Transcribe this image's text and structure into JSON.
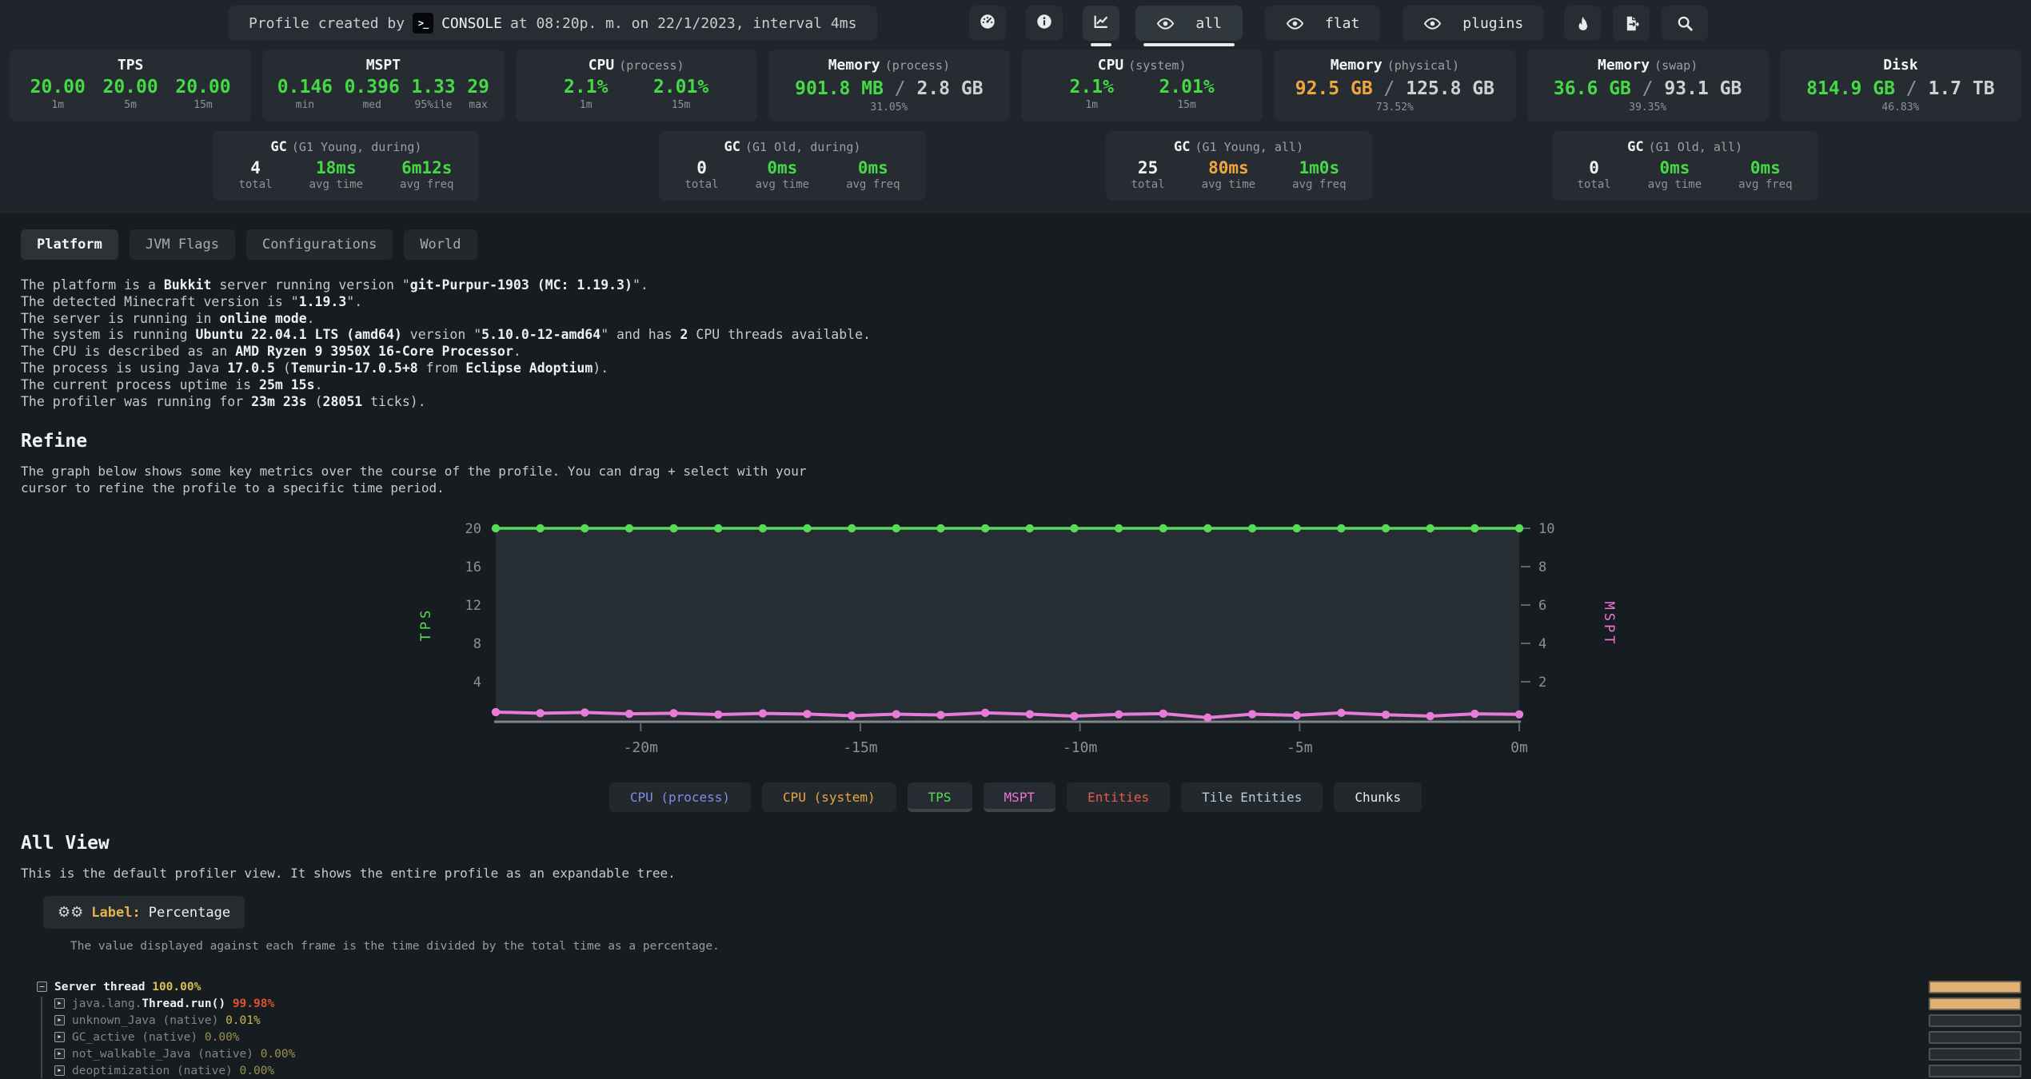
{
  "colors": {
    "green": "#45d945",
    "orange": "#efa73d",
    "white": "#f2f4f6"
  },
  "header": {
    "title_prefix": "Profile created by",
    "console_icon": ">_",
    "user": "CONSOLE",
    "title_suffix": "at 08:20p. m. on 22/1/2023, interval 4ms",
    "icon_buttons": [
      {
        "icon": "gauge-icon",
        "active": false
      },
      {
        "icon": "info-icon",
        "active": false
      },
      {
        "icon": "chart-icon",
        "active": true
      }
    ],
    "view_buttons": [
      {
        "label": "all",
        "active": true
      },
      {
        "label": "flat",
        "active": false
      },
      {
        "label": "plugins",
        "active": false
      }
    ],
    "tool_buttons": [
      {
        "icon": "flame-icon"
      },
      {
        "icon": "export-icon"
      },
      {
        "icon": "search-icon"
      }
    ]
  },
  "stats": [
    {
      "type": "cols",
      "title": "TPS",
      "subtitle": "",
      "cols": [
        {
          "v": "20.00",
          "label": "1m",
          "color": "green"
        },
        {
          "v": "20.00",
          "label": "5m",
          "color": "green"
        },
        {
          "v": "20.00",
          "label": "15m",
          "color": "green"
        }
      ]
    },
    {
      "type": "cols",
      "title": "MSPT",
      "subtitle": "",
      "cols": [
        {
          "v": "0.146",
          "label": "min",
          "color": "green"
        },
        {
          "v": "0.396",
          "label": "med",
          "color": "green"
        },
        {
          "v": "1.33",
          "label": "95%ile",
          "color": "green"
        },
        {
          "v": "29",
          "label": "max",
          "color": "green"
        }
      ]
    },
    {
      "type": "cols",
      "title": "CPU",
      "subtitle": "(process)",
      "cols": [
        {
          "v": "2.1%",
          "label": "1m",
          "color": "green"
        },
        {
          "v": "2.01%",
          "label": "15m",
          "color": "green"
        }
      ]
    },
    {
      "type": "usage",
      "title": "Memory",
      "subtitle": "(process)",
      "used": "901.8 MB",
      "total": "2.8 GB",
      "pct": "31.05%",
      "used_color": "green"
    },
    {
      "type": "cols",
      "title": "CPU",
      "subtitle": "(system)",
      "cols": [
        {
          "v": "2.1%",
          "label": "1m",
          "color": "green"
        },
        {
          "v": "2.01%",
          "label": "15m",
          "color": "green"
        }
      ]
    },
    {
      "type": "usage",
      "title": "Memory",
      "subtitle": "(physical)",
      "used": "92.5 GB",
      "total": "125.8 GB",
      "pct": "73.52%",
      "used_color": "orange"
    },
    {
      "type": "usage",
      "title": "Memory",
      "subtitle": "(swap)",
      "used": "36.6 GB",
      "total": "93.1 GB",
      "pct": "39.35%",
      "used_color": "green"
    },
    {
      "type": "usage",
      "title": "Disk",
      "subtitle": "",
      "used": "814.9 GB",
      "total": "1.7 TB",
      "pct": "46.83%",
      "used_color": "green"
    }
  ],
  "gc": [
    {
      "title": "GC",
      "subtitle": "(G1 Young, during)",
      "cols": [
        {
          "v": "4",
          "label": "total",
          "color": "white"
        },
        {
          "v": "18ms",
          "label": "avg time",
          "color": "green"
        },
        {
          "v": "6m12s",
          "label": "avg freq",
          "color": "green"
        }
      ]
    },
    {
      "title": "GC",
      "subtitle": "(G1 Old, during)",
      "cols": [
        {
          "v": "0",
          "label": "total",
          "color": "white"
        },
        {
          "v": "0ms",
          "label": "avg time",
          "color": "green"
        },
        {
          "v": "0ms",
          "label": "avg freq",
          "color": "green"
        }
      ]
    },
    {
      "title": "GC",
      "subtitle": "(G1 Young, all)",
      "cols": [
        {
          "v": "25",
          "label": "total",
          "color": "white"
        },
        {
          "v": "80ms",
          "label": "avg time",
          "color": "orange"
        },
        {
          "v": "1m0s",
          "label": "avg freq",
          "color": "green"
        }
      ]
    },
    {
      "title": "GC",
      "subtitle": "(G1 Old, all)",
      "cols": [
        {
          "v": "0",
          "label": "total",
          "color": "white"
        },
        {
          "v": "0ms",
          "label": "avg time",
          "color": "green"
        },
        {
          "v": "0ms",
          "label": "avg freq",
          "color": "green"
        }
      ]
    }
  ],
  "tabs": [
    {
      "label": "Platform",
      "active": true
    },
    {
      "label": "JVM Flags",
      "active": false
    },
    {
      "label": "Configurations",
      "active": false
    },
    {
      "label": "World",
      "active": false
    }
  ],
  "platform_lines": [
    [
      {
        "t": "The platform is a "
      },
      {
        "t": "Bukkit",
        "b": 1
      },
      {
        "t": " server running version \""
      },
      {
        "t": "git-Purpur-1903 (MC: 1.19.3)",
        "b": 1
      },
      {
        "t": "\"."
      }
    ],
    [
      {
        "t": "The detected Minecraft version is \""
      },
      {
        "t": "1.19.3",
        "b": 1
      },
      {
        "t": "\"."
      }
    ],
    [
      {
        "t": "The server is running in "
      },
      {
        "t": "online mode",
        "b": 1
      },
      {
        "t": "."
      }
    ],
    [
      {
        "t": "The system is running "
      },
      {
        "t": "Ubuntu 22.04.1 LTS (amd64)",
        "b": 1
      },
      {
        "t": " version \""
      },
      {
        "t": "5.10.0-12-amd64",
        "b": 1
      },
      {
        "t": "\" and has "
      },
      {
        "t": "2",
        "b": 1
      },
      {
        "t": " CPU threads available."
      }
    ],
    [
      {
        "t": "The CPU is described as an "
      },
      {
        "t": "AMD Ryzen 9 3950X 16-Core Processor",
        "b": 1
      },
      {
        "t": "."
      }
    ],
    [
      {
        "t": "The process is using Java "
      },
      {
        "t": "17.0.5",
        "b": 1
      },
      {
        "t": " ("
      },
      {
        "t": "Temurin-17.0.5+8",
        "b": 1
      },
      {
        "t": " from "
      },
      {
        "t": "Eclipse Adoptium",
        "b": 1
      },
      {
        "t": ")."
      }
    ],
    [
      {
        "t": "The current process uptime is "
      },
      {
        "t": "25m 15s",
        "b": 1
      },
      {
        "t": "."
      }
    ],
    [
      {
        "t": "The profiler was running for "
      },
      {
        "t": "23m 23s",
        "b": 1
      },
      {
        "t": " ("
      },
      {
        "t": "28051",
        "b": 1
      },
      {
        "t": " ticks)."
      }
    ]
  ],
  "refine": {
    "heading": "Refine",
    "desc": "The graph below shows some key metrics over the course of the profile. You can drag + select with your cursor to refine the profile to a specific time period."
  },
  "chart_data": {
    "type": "line",
    "x_range": [
      -23.3,
      0
    ],
    "x_ticks": [
      {
        "t": -20,
        "label": "-20m"
      },
      {
        "t": -15,
        "label": "-15m"
      },
      {
        "t": -10,
        "label": "-10m"
      },
      {
        "t": -5,
        "label": "-5m"
      },
      {
        "t": 0,
        "label": "0m"
      }
    ],
    "left_axis": {
      "label": "TPS",
      "color": "#55de55",
      "ticks": [
        4,
        8,
        12,
        16,
        20
      ],
      "range": [
        0,
        20
      ]
    },
    "right_axis": {
      "label": "MSPT",
      "color": "#ee74d8",
      "ticks": [
        2,
        4,
        6,
        8,
        10
      ],
      "range": [
        0,
        10
      ]
    },
    "grid": false,
    "series": [
      {
        "name": "TPS",
        "axis": "left",
        "color": "#57da57",
        "values": [
          20,
          20,
          20,
          20,
          20,
          20,
          20,
          20,
          20,
          20,
          20,
          20,
          20,
          20,
          20,
          20,
          20,
          20,
          20,
          20,
          20,
          20,
          20,
          20
        ]
      },
      {
        "name": "MSPT",
        "axis": "right",
        "color": "#e77bd9",
        "values": [
          0.42,
          0.36,
          0.4,
          0.33,
          0.36,
          0.29,
          0.35,
          0.32,
          0.23,
          0.31,
          0.27,
          0.38,
          0.31,
          0.21,
          0.3,
          0.34,
          0.13,
          0.31,
          0.25,
          0.38,
          0.28,
          0.21,
          0.33,
          0.3
        ]
      }
    ]
  },
  "legend": [
    {
      "label": "CPU (process)",
      "color": "#7d8dec",
      "active": false
    },
    {
      "label": "CPU (system)",
      "color": "#eda53c",
      "active": false
    },
    {
      "label": "TPS",
      "color": "#55de55",
      "active": true
    },
    {
      "label": "MSPT",
      "color": "#ee74d8",
      "active": true
    },
    {
      "label": "Entities",
      "color": "#e25b4e",
      "active": false
    },
    {
      "label": "Tile Entities",
      "color": "#b9cbe0",
      "active": false
    },
    {
      "label": "Chunks",
      "color": "#e9ecee",
      "active": false
    }
  ],
  "allview": {
    "heading": "All View",
    "desc": "This is the default profiler view. It shows the entire profile as an expandable tree.",
    "gears_icon": "⚙⚙",
    "label_key": "Label:",
    "label_value": "Percentage",
    "label_desc": "The value displayed against each frame is the time divided by the total time as a percentage."
  },
  "tree": {
    "rows": [
      {
        "depth": 0,
        "expander": "minus",
        "bar": "full",
        "segments": [
          {
            "t": "Server thread ",
            "c": "name-root"
          },
          {
            "t": "100.00%",
            "c": "pct-yellow"
          }
        ]
      },
      {
        "depth": 1,
        "expander": "arrow",
        "bar": "full",
        "segments": [
          {
            "t": "java.lang.",
            "c": "pkg"
          },
          {
            "t": "Thread.run() ",
            "c": "method"
          },
          {
            "t": "99.98%",
            "c": "pct-red"
          }
        ]
      },
      {
        "depth": 1,
        "expander": "arrow",
        "bar": "empty",
        "segments": [
          {
            "t": "unknown_Java (native) ",
            "c": "native"
          },
          {
            "t": "0.01%",
            "c": "pct-yellow-dim"
          }
        ]
      },
      {
        "depth": 1,
        "expander": "arrow",
        "bar": "empty",
        "segments": [
          {
            "t": "GC_active (native) ",
            "c": "native"
          },
          {
            "t": "0.00%",
            "c": "pct-olive"
          }
        ]
      },
      {
        "depth": 1,
        "expander": "arrow",
        "bar": "empty",
        "segments": [
          {
            "t": "not_walkable_Java (native) ",
            "c": "native"
          },
          {
            "t": "0.00%",
            "c": "pct-olive"
          }
        ]
      },
      {
        "depth": 1,
        "expander": "arrow",
        "bar": "empty",
        "segments": [
          {
            "t": "deoptimization (native) ",
            "c": "native"
          },
          {
            "t": "0.00%",
            "c": "pct-olive"
          }
        ]
      }
    ]
  }
}
